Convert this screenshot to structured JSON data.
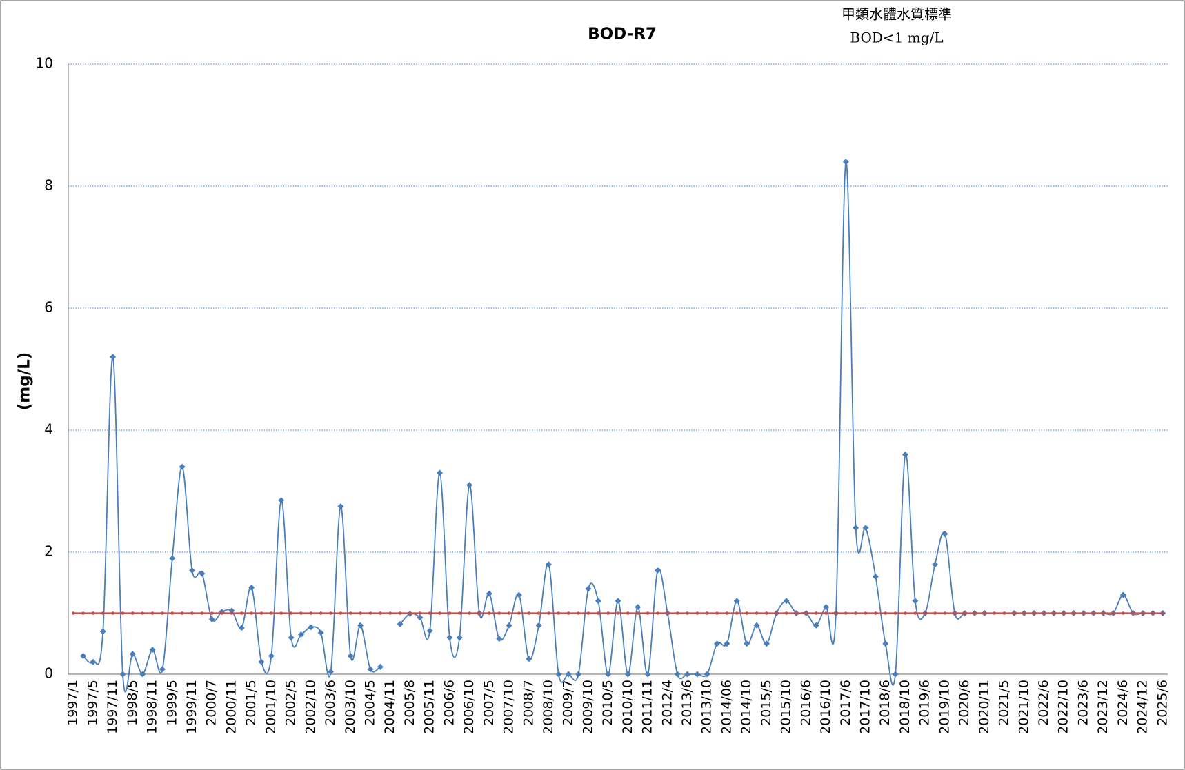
{
  "chart_data": {
    "type": "line",
    "title": "BOD-R7",
    "annotations": [
      "甲類水體水質標準",
      "BOD<1 mg/L"
    ],
    "y_label": "(mg/L)",
    "ylim": [
      0,
      10
    ],
    "yticks": [
      0,
      2,
      4,
      6,
      8,
      10
    ],
    "grid": true,
    "smooth": true,
    "categories": [
      "1997/1",
      null,
      "1997/5",
      null,
      "1997/11",
      null,
      "1998/5",
      null,
      "1998/11",
      null,
      "1999/5",
      null,
      "1999/11",
      null,
      "2000/7",
      null,
      "2000/11",
      null,
      "2001/5",
      null,
      "2001/10",
      null,
      "2002/5",
      null,
      "2002/10",
      null,
      "2003/6",
      null,
      "2003/10",
      null,
      "2004/5",
      null,
      "2004/11",
      null,
      "2005/8",
      null,
      "2005/11",
      null,
      "2006/6",
      null,
      "2006/10",
      null,
      "2007/5",
      null,
      "2007/10",
      null,
      "2008/7",
      null,
      "2008/10",
      null,
      "2009/7",
      null,
      "2009/10",
      null,
      "2010/5",
      null,
      "2010/10",
      null,
      "2011/11",
      null,
      "2012/4",
      null,
      "2013/6",
      null,
      "2013/10",
      null,
      "2014/06",
      null,
      "2014/10",
      null,
      "2015/5",
      null,
      "2015/10",
      null,
      "2016/6",
      null,
      "2016/10",
      null,
      "2017/6",
      null,
      "2017/10",
      null,
      "2018/6",
      null,
      "2018/10",
      null,
      "2019/6",
      null,
      "2019/10",
      null,
      "2020/6",
      null,
      "2020/11",
      null,
      "2021/5",
      null,
      "2021/10",
      null,
      "2022/6",
      null,
      "2022/10",
      null,
      "2023/6",
      null,
      "2023/12",
      null,
      "2024/6",
      null,
      "2024/12",
      null,
      "2025/6"
    ],
    "series": [
      {
        "color": "#4a7ebb",
        "marker": "diamond",
        "values": [
          null,
          0.3,
          0.2,
          0.7,
          5.2,
          0,
          0.33,
          0,
          0.4,
          0.08,
          1.9,
          3.4,
          1.7,
          1.65,
          0.9,
          1.02,
          1.04,
          0.76,
          1.42,
          0.2,
          0.3,
          2.85,
          0.6,
          0.65,
          0.77,
          0.68,
          0.04,
          2.75,
          0.3,
          0.8,
          0.08,
          0.12,
          null,
          0.82,
          0.99,
          0.93,
          0.71,
          3.3,
          0.6,
          0.6,
          3.1,
          1.0,
          1.32,
          0.58,
          0.8,
          1.3,
          0.25,
          0.8,
          1.8,
          0,
          0,
          0,
          1.4,
          1.2,
          0,
          1.2,
          0,
          1.1,
          0,
          1.7,
          1.0,
          0,
          0,
          0,
          0,
          0.5,
          0.5,
          1.2,
          0.5,
          0.8,
          0.5,
          1.0,
          1.2,
          1.0,
          1.0,
          0.8,
          1.1,
          1.0,
          8.4,
          2.4,
          2.4,
          1.6,
          0.5,
          0,
          3.6,
          1.2,
          1.0,
          1.8,
          2.3,
          1.0,
          1.0,
          1.0,
          1.0,
          null,
          null,
          1,
          1,
          1,
          1,
          1,
          1,
          1,
          1,
          1,
          1,
          1,
          1.3,
          1,
          1,
          1,
          1
        ]
      },
      {
        "color": "#c0504d",
        "marker": "dot",
        "values": [
          1,
          1,
          1,
          1,
          1,
          1,
          1,
          1,
          1,
          1,
          1,
          1,
          1,
          1,
          1,
          1,
          1,
          1,
          1,
          1,
          1,
          1,
          1,
          1,
          1,
          1,
          1,
          1,
          1,
          1,
          1,
          1,
          1,
          1,
          1,
          1,
          1,
          1,
          1,
          1,
          1,
          1,
          1,
          1,
          1,
          1,
          1,
          1,
          1,
          1,
          1,
          1,
          1,
          1,
          1,
          1,
          1,
          1,
          1,
          1,
          1,
          1,
          1,
          1,
          1,
          1,
          1,
          1,
          1,
          1,
          1,
          1,
          1,
          1,
          1,
          1,
          1,
          1,
          1,
          1,
          1,
          1,
          1,
          1,
          1,
          1,
          1,
          1,
          1,
          1,
          1,
          1,
          1,
          1,
          1,
          1,
          1,
          1,
          1,
          1,
          1,
          1,
          1,
          1,
          1,
          1,
          1,
          1,
          1,
          1,
          1
        ]
      }
    ]
  }
}
